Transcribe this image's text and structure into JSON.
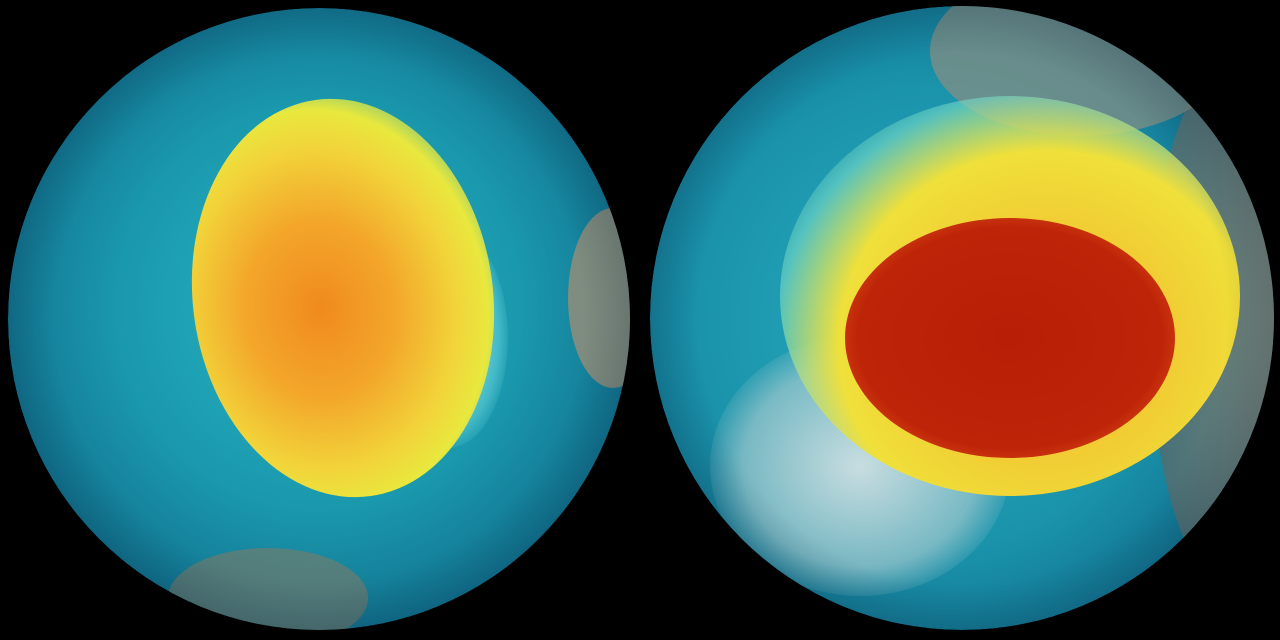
{
  "colors": {
    "background": "#000000",
    "ocean_dark": "#0b3a5e",
    "teal": "#1aa6b8",
    "cyan": "#7fe6ea",
    "yellow": "#f2e63a",
    "orange": "#f39a1e",
    "red": "#b81e05",
    "land": "#9a8f78",
    "ice": "#c8dde0"
  },
  "globes": [
    {
      "name": "left-globe"
    },
    {
      "name": "right-globe"
    }
  ]
}
